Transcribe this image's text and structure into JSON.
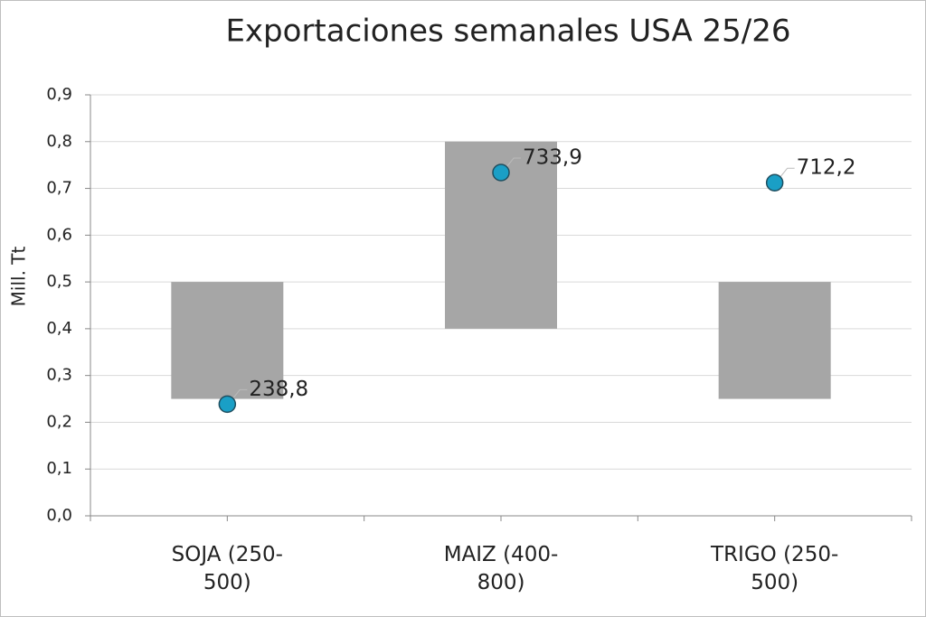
{
  "chart_data": {
    "type": "floating_bar_point",
    "title": "Exportaciones semanales USA  25/26",
    "y_label": "Mill. Tt",
    "categories": [
      "SOJA (250-500)",
      "MAIZ (400-800)",
      "TRIGO (250-500)"
    ],
    "range_low": [
      0.25,
      0.4,
      0.25
    ],
    "range_high": [
      0.5,
      0.8,
      0.5
    ],
    "range_color": "#a6a6a6",
    "values": [
      0.2388,
      0.7339,
      0.7122
    ],
    "value_labels": [
      "238,8",
      "733,9",
      "712,2"
    ],
    "point_color": "#1a9fc6",
    "ylim": [
      0,
      0.9
    ],
    "yticks": [
      {
        "value": 0,
        "label": "0,0"
      },
      {
        "value": 0.1,
        "label": "0,1"
      },
      {
        "value": 0.2,
        "label": "0,2"
      },
      {
        "value": 0.3,
        "label": "0,3"
      },
      {
        "value": 0.4,
        "label": "0,4"
      },
      {
        "value": 0.5,
        "label": "0,5"
      },
      {
        "value": 0.6,
        "label": "0,6"
      },
      {
        "value": 0.7,
        "label": "0,7"
      },
      {
        "value": 0.8,
        "label": "0,8"
      },
      {
        "value": 0.9,
        "label": "0,9"
      }
    ],
    "grid": true
  }
}
